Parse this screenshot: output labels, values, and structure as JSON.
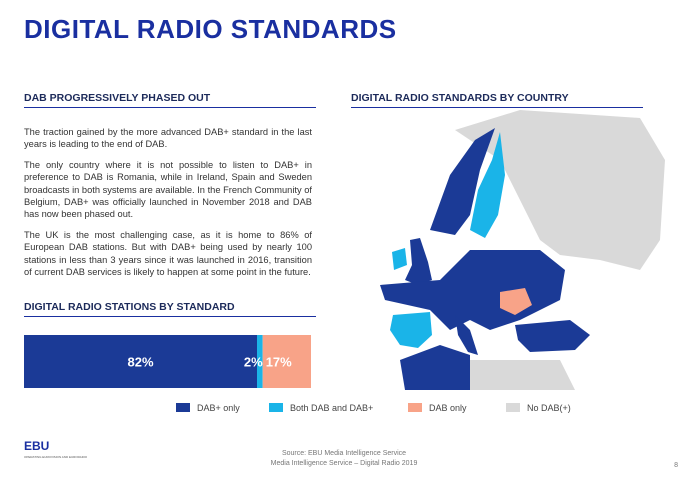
{
  "header": {
    "title": "DIGITAL RADIO STANDARDS"
  },
  "left": {
    "heading": "DAB PROGRESSIVELY PHASED OUT",
    "paragraphs": [
      "The traction gained by the more advanced DAB+ standard in the last years is leading to the end of DAB.",
      "The only country where it is not possible to listen to DAB+ in preference to DAB is Romania, while in Ireland, Spain and Sweden broadcasts in both systems are available. In the French Community of Belgium, DAB+ was officially launched in November 2018 and DAB has now been phased out.",
      "The UK is the most challenging case, as it is home to 86% of European DAB stations. But with DAB+ being used by nearly 100 stations in less than 3 years since it was launched in 2016, transition of current DAB services is likely to happen at some point in the future."
    ]
  },
  "chart_data": {
    "type": "stacked-bar",
    "title": "DIGITAL RADIO STATIONS BY STANDARD",
    "series": [
      {
        "name": "DAB+ only",
        "color": "#1b3a96",
        "values": [
          82
        ],
        "value_labels": [
          "82%"
        ]
      },
      {
        "name": "Both DAB and DAB+",
        "color": "#1ab4e8",
        "values": [
          2
        ],
        "value_labels": [
          "2%"
        ]
      },
      {
        "name": "DAB only",
        "color": "#f8a388",
        "values": [
          17
        ],
        "value_labels": [
          "17%"
        ]
      }
    ]
  },
  "map": {
    "title": "DIGITAL RADIO STANDARDS BY COUNTRY",
    "no_dab_label": "No DAB(+)",
    "no_dab_color": "#d9d9d9"
  },
  "footer": {
    "logo": "EBU",
    "logo_tagline": "OPERATING EUROVISION AND EURORADIO",
    "source": "Source: EBU Media Intelligence Service",
    "publication": "Media Intelligence Service – Digital Radio 2019",
    "page": "8"
  }
}
